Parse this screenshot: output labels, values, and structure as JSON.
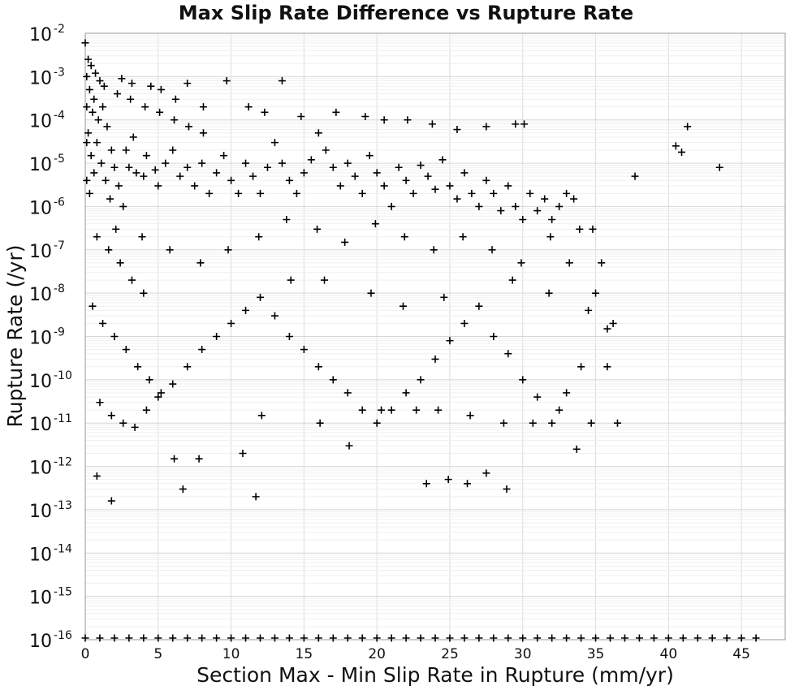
{
  "chart_data": {
    "type": "scatter",
    "title": "Max Slip Rate Difference vs Rupture Rate",
    "xlabel": "Section Max - Min Slip Rate in Rupture (mm/yr)",
    "ylabel": "Rupture Rate (/yr)",
    "xlim": [
      0,
      48
    ],
    "ylim": [
      1e-16,
      0.01
    ],
    "xscale": "linear",
    "yscale": "log",
    "x_ticks": [
      0,
      5,
      10,
      15,
      20,
      25,
      30,
      35,
      40,
      45
    ],
    "y_ticks": [
      {
        "base": "10",
        "exp": "-2",
        "value": 0.01
      },
      {
        "base": "10",
        "exp": "-3",
        "value": 0.001
      },
      {
        "base": "10",
        "exp": "-4",
        "value": 0.0001
      },
      {
        "base": "10",
        "exp": "-5",
        "value": 1e-05
      },
      {
        "base": "10",
        "exp": "-6",
        "value": 1e-06
      },
      {
        "base": "10",
        "exp": "-7",
        "value": 1e-07
      },
      {
        "base": "10",
        "exp": "-8",
        "value": 1e-08
      },
      {
        "base": "10",
        "exp": "-9",
        "value": 1e-09
      },
      {
        "base": "10",
        "exp": "-10",
        "value": 1e-10
      },
      {
        "base": "10",
        "exp": "-11",
        "value": 1e-11
      },
      {
        "base": "10",
        "exp": "-12",
        "value": 1e-12
      },
      {
        "base": "10",
        "exp": "-13",
        "value": 1e-13
      },
      {
        "base": "10",
        "exp": "-14",
        "value": 1e-14
      },
      {
        "base": "10",
        "exp": "-15",
        "value": 1e-15
      },
      {
        "base": "10",
        "exp": "-16",
        "value": 1e-16
      }
    ],
    "grid": true,
    "marker": "plus",
    "marker_color": "#000000",
    "series": [
      {
        "points": [
          [
            0.0,
            0.006
          ],
          [
            0.2,
            0.0025
          ],
          [
            0.4,
            0.0018
          ],
          [
            0.7,
            0.0012
          ],
          [
            1.0,
            0.0008
          ],
          [
            0.3,
            0.0005
          ],
          [
            0.6,
            0.0003
          ],
          [
            1.2,
            0.0002
          ],
          [
            0.5,
            0.00015
          ],
          [
            0.9,
            0.0001
          ],
          [
            1.5,
            7e-05
          ],
          [
            0.2,
            5e-05
          ],
          [
            0.8,
            3e-05
          ],
          [
            1.8,
            2e-05
          ],
          [
            0.4,
            1.5e-05
          ],
          [
            1.1,
            1e-05
          ],
          [
            2.0,
            8e-06
          ],
          [
            0.6,
            6e-06
          ],
          [
            1.4,
            4e-06
          ],
          [
            2.3,
            3e-06
          ],
          [
            0.3,
            2e-06
          ],
          [
            1.7,
            1.5e-06
          ],
          [
            2.6,
            1e-06
          ],
          [
            3.0,
            8e-06
          ],
          [
            3.5,
            6e-06
          ],
          [
            4.0,
            5e-06
          ],
          [
            2.8,
            2e-05
          ],
          [
            3.3,
            4e-05
          ],
          [
            4.2,
            1.5e-05
          ],
          [
            4.8,
            7e-06
          ],
          [
            5.0,
            3e-06
          ],
          [
            5.5,
            1e-05
          ],
          [
            6.0,
            2e-05
          ],
          [
            6.5,
            5e-06
          ],
          [
            7.0,
            8e-06
          ],
          [
            7.5,
            3e-06
          ],
          [
            8.0,
            1e-05
          ],
          [
            8.5,
            2e-06
          ],
          [
            9.0,
            6e-06
          ],
          [
            9.5,
            1.5e-05
          ],
          [
            10.0,
            4e-06
          ],
          [
            10.5,
            2e-06
          ],
          [
            11.0,
            1e-05
          ],
          [
            11.5,
            5e-06
          ],
          [
            12.0,
            2e-06
          ],
          [
            12.5,
            8e-06
          ],
          [
            13.0,
            3e-05
          ],
          [
            13.5,
            1e-05
          ],
          [
            14.0,
            4e-06
          ],
          [
            14.5,
            2e-06
          ],
          [
            15.0,
            6e-06
          ],
          [
            15.5,
            1.2e-05
          ],
          [
            16.0,
            5e-05
          ],
          [
            16.5,
            2e-05
          ],
          [
            17.0,
            8e-06
          ],
          [
            17.5,
            3e-06
          ],
          [
            18.0,
            1e-05
          ],
          [
            18.5,
            5e-06
          ],
          [
            19.0,
            2e-06
          ],
          [
            19.5,
            1.5e-05
          ],
          [
            20.0,
            6e-06
          ],
          [
            20.5,
            3e-06
          ],
          [
            21.0,
            1e-06
          ],
          [
            21.5,
            8e-06
          ],
          [
            22.0,
            4e-06
          ],
          [
            22.5,
            2e-06
          ],
          [
            23.0,
            9e-06
          ],
          [
            23.5,
            5e-06
          ],
          [
            24.0,
            2.5e-06
          ],
          [
            24.5,
            1.2e-05
          ],
          [
            25.0,
            3e-06
          ],
          [
            25.5,
            1.5e-06
          ],
          [
            26.0,
            6e-06
          ],
          [
            26.5,
            2e-06
          ],
          [
            27.0,
            1e-06
          ],
          [
            27.5,
            4e-06
          ],
          [
            28.0,
            2e-06
          ],
          [
            28.5,
            8e-07
          ],
          [
            29.0,
            3e-06
          ],
          [
            29.5,
            1e-06
          ],
          [
            30.0,
            5e-07
          ],
          [
            30.5,
            2e-06
          ],
          [
            31.0,
            8e-07
          ],
          [
            31.5,
            1.5e-06
          ],
          [
            32.0,
            5e-07
          ],
          [
            32.5,
            1e-06
          ],
          [
            33.0,
            2e-06
          ],
          [
            33.5,
            1.5e-06
          ],
          [
            34.8,
            3e-07
          ],
          [
            37.7,
            5e-06
          ],
          [
            40.5,
            2.5e-05
          ],
          [
            40.9,
            1.8e-05
          ],
          [
            41.3,
            7e-05
          ],
          [
            43.5,
            8e-06
          ],
          [
            29.5,
            8e-05
          ],
          [
            30.1,
            8e-05
          ],
          [
            13.5,
            0.0008
          ],
          [
            9.7,
            0.0008
          ],
          [
            7.0,
            0.0007
          ],
          [
            4.5,
            0.0006
          ],
          [
            2.5,
            0.0009
          ],
          [
            3.2,
            0.0007
          ],
          [
            5.2,
            0.0005
          ],
          [
            6.2,
            0.0003
          ],
          [
            8.1,
            0.0002
          ],
          [
            11.2,
            0.0002
          ],
          [
            12.3,
            0.00015
          ],
          [
            14.8,
            0.00012
          ],
          [
            17.2,
            0.00015
          ],
          [
            19.2,
            0.00012
          ],
          [
            20.5,
            0.0001
          ],
          [
            22.1,
            0.0001
          ],
          [
            23.8,
            8e-05
          ],
          [
            25.5,
            6e-05
          ],
          [
            27.5,
            7e-05
          ],
          [
            0.8,
            2e-07
          ],
          [
            1.6,
            1e-07
          ],
          [
            2.4,
            5e-08
          ],
          [
            3.2,
            2e-08
          ],
          [
            4.0,
            1e-08
          ],
          [
            0.5,
            5e-09
          ],
          [
            1.2,
            2e-09
          ],
          [
            2.0,
            1e-09
          ],
          [
            2.8,
            5e-10
          ],
          [
            3.6,
            2e-10
          ],
          [
            4.4,
            1e-10
          ],
          [
            5.2,
            5e-11
          ],
          [
            1.0,
            3e-11
          ],
          [
            1.8,
            1.5e-11
          ],
          [
            2.6,
            1e-11
          ],
          [
            3.4,
            8e-12
          ],
          [
            4.2,
            2e-11
          ],
          [
            5.0,
            4e-11
          ],
          [
            6.0,
            8e-11
          ],
          [
            7.0,
            2e-10
          ],
          [
            8.0,
            5e-10
          ],
          [
            9.0,
            1e-09
          ],
          [
            10.0,
            2e-09
          ],
          [
            11.0,
            4e-09
          ],
          [
            12.0,
            8e-09
          ],
          [
            13.0,
            3e-09
          ],
          [
            14.0,
            1e-09
          ],
          [
            15.0,
            5e-10
          ],
          [
            16.0,
            2e-10
          ],
          [
            17.0,
            1e-10
          ],
          [
            18.0,
            5e-11
          ],
          [
            19.0,
            2e-11
          ],
          [
            20.0,
            1e-11
          ],
          [
            21.0,
            2e-11
          ],
          [
            22.0,
            5e-11
          ],
          [
            23.0,
            1e-10
          ],
          [
            24.0,
            3e-10
          ],
          [
            25.0,
            8e-10
          ],
          [
            26.0,
            2e-09
          ],
          [
            27.0,
            5e-09
          ],
          [
            28.0,
            1e-09
          ],
          [
            29.0,
            4e-10
          ],
          [
            30.0,
            1e-10
          ],
          [
            31.0,
            4e-11
          ],
          [
            32.0,
            1e-11
          ],
          [
            33.0,
            5e-11
          ],
          [
            34.0,
            2e-10
          ],
          [
            35.0,
            1e-08
          ],
          [
            36.5,
            1e-11
          ],
          [
            35.8,
            2e-10
          ],
          [
            34.7,
            1e-11
          ],
          [
            33.7,
            2.5e-12
          ],
          [
            28.9,
            3e-13
          ],
          [
            27.5,
            7e-13
          ],
          [
            26.2,
            4e-13
          ],
          [
            24.9,
            5e-13
          ],
          [
            23.4,
            4e-13
          ],
          [
            11.7,
            2e-13
          ],
          [
            6.7,
            3e-13
          ],
          [
            1.8,
            1.6e-13
          ],
          [
            0.8,
            6e-13
          ],
          [
            6.1,
            1.5e-12
          ],
          [
            7.8,
            1.5e-12
          ],
          [
            10.8,
            2e-12
          ],
          [
            12.1,
            1.5e-11
          ],
          [
            16.1,
            1e-11
          ],
          [
            18.1,
            3e-12
          ],
          [
            20.3,
            2e-11
          ],
          [
            22.7,
            2e-11
          ],
          [
            24.2,
            2e-11
          ],
          [
            26.4,
            1.5e-11
          ],
          [
            28.7,
            1e-11
          ],
          [
            30.7,
            1e-11
          ],
          [
            32.5,
            2e-11
          ],
          [
            16.4,
            2e-08
          ],
          [
            14.1,
            2e-08
          ],
          [
            19.6,
            1e-08
          ],
          [
            21.8,
            5e-09
          ],
          [
            24.6,
            8e-09
          ],
          [
            29.3,
            2e-08
          ],
          [
            31.8,
            1e-08
          ],
          [
            33.2,
            5e-08
          ],
          [
            34.5,
            4e-09
          ],
          [
            35.8,
            1.5e-09
          ],
          [
            2.1,
            3e-07
          ],
          [
            3.9,
            2e-07
          ],
          [
            5.8,
            1e-07
          ],
          [
            7.9,
            5e-08
          ],
          [
            9.8,
            1e-07
          ],
          [
            11.9,
            2e-07
          ],
          [
            13.8,
            5e-07
          ],
          [
            15.9,
            3e-07
          ],
          [
            17.8,
            1.5e-07
          ],
          [
            19.9,
            4e-07
          ],
          [
            21.9,
            2e-07
          ],
          [
            23.9,
            1e-07
          ],
          [
            25.9,
            2e-07
          ],
          [
            27.9,
            1e-07
          ],
          [
            29.9,
            5e-08
          ],
          [
            31.9,
            2e-07
          ],
          [
            33.9,
            3e-07
          ],
          [
            35.4,
            5e-08
          ],
          [
            36.2,
            2e-09
          ],
          [
            0.1,
            0.001
          ],
          [
            0.1,
            0.0002
          ],
          [
            0.1,
            3e-05
          ],
          [
            0.1,
            4e-06
          ],
          [
            1.3,
            0.0006
          ],
          [
            2.2,
            0.0004
          ],
          [
            3.1,
            0.0003
          ],
          [
            4.1,
            0.0002
          ],
          [
            5.1,
            0.00015
          ],
          [
            6.1,
            0.0001
          ],
          [
            7.1,
            7e-05
          ],
          [
            8.1,
            5e-05
          ]
        ]
      },
      {
        "name": "",
        "points": [
          [
            0.0,
            1e-16
          ],
          [
            1.0,
            1e-16
          ],
          [
            2.0,
            1e-16
          ],
          [
            3.0,
            1e-16
          ],
          [
            4.0,
            1e-16
          ],
          [
            5.0,
            1e-16
          ],
          [
            6.0,
            1e-16
          ],
          [
            7.0,
            1e-16
          ],
          [
            8.0,
            1e-16
          ],
          [
            9.0,
            1e-16
          ],
          [
            10.0,
            1e-16
          ],
          [
            11.0,
            1e-16
          ],
          [
            12.0,
            1e-16
          ],
          [
            13.0,
            1e-16
          ],
          [
            14.0,
            1e-16
          ],
          [
            15.0,
            1e-16
          ],
          [
            16.0,
            1e-16
          ],
          [
            17.0,
            1e-16
          ],
          [
            18.0,
            1e-16
          ],
          [
            19.0,
            1e-16
          ],
          [
            20.0,
            1e-16
          ],
          [
            21.0,
            1e-16
          ],
          [
            22.0,
            1e-16
          ],
          [
            23.0,
            1e-16
          ],
          [
            24.0,
            1e-16
          ],
          [
            25.0,
            1e-16
          ],
          [
            26.0,
            1e-16
          ],
          [
            27.0,
            1e-16
          ],
          [
            28.0,
            1e-16
          ],
          [
            29.0,
            1e-16
          ],
          [
            30.0,
            1e-16
          ],
          [
            31.0,
            1e-16
          ],
          [
            32.0,
            1e-16
          ],
          [
            33.0,
            1e-16
          ],
          [
            34.0,
            1e-16
          ],
          [
            35.0,
            1e-16
          ],
          [
            36.0,
            1e-16
          ],
          [
            37.0,
            1e-16
          ],
          [
            38.0,
            1e-16
          ],
          [
            39.0,
            1e-16
          ],
          [
            40.0,
            1e-16
          ],
          [
            41.0,
            1e-16
          ],
          [
            42.0,
            1e-16
          ],
          [
            43.0,
            1e-16
          ],
          [
            44.0,
            1e-16
          ],
          [
            45.0,
            1e-16
          ],
          [
            46.0,
            1e-16
          ]
        ]
      }
    ]
  }
}
